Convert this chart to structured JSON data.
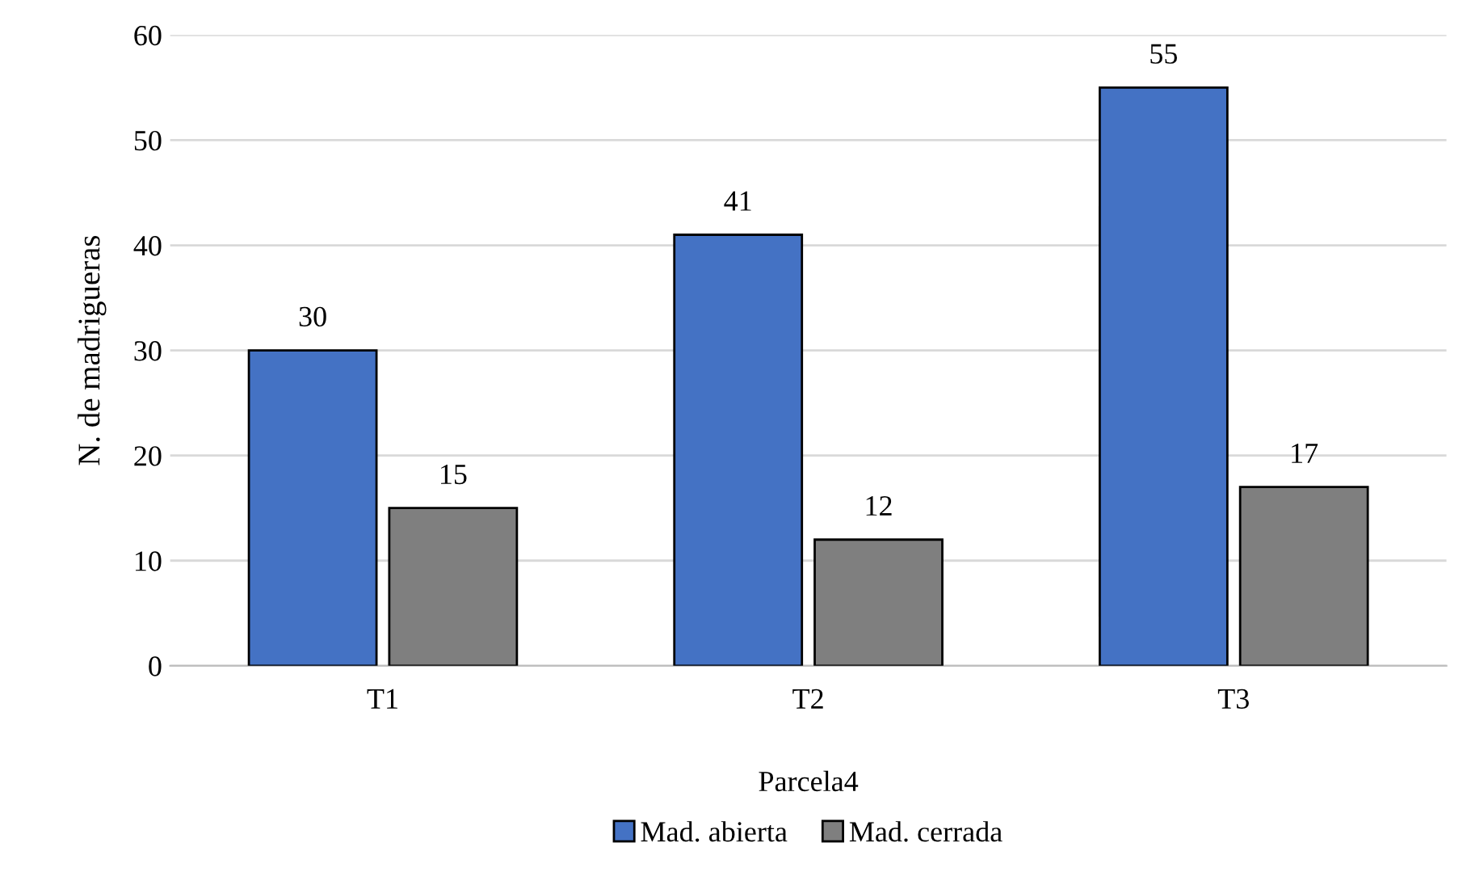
{
  "chart_data": {
    "type": "bar",
    "ylabel": "N. de madrigueras",
    "xlabel": "Parcela4",
    "categories": [
      "T1",
      "T2",
      "T3"
    ],
    "series": [
      {
        "name": "Mad. abierta",
        "color": "#4472c4",
        "values": [
          30,
          41,
          55
        ]
      },
      {
        "name": "Mad. cerrada",
        "color": "#7f7f7f",
        "values": [
          15,
          12,
          17
        ]
      }
    ],
    "ylim": [
      0,
      60
    ],
    "yticks": [
      0,
      10,
      20,
      30,
      40,
      50,
      60
    ],
    "grid": "y",
    "legend": "bottom",
    "data_labels": true
  }
}
